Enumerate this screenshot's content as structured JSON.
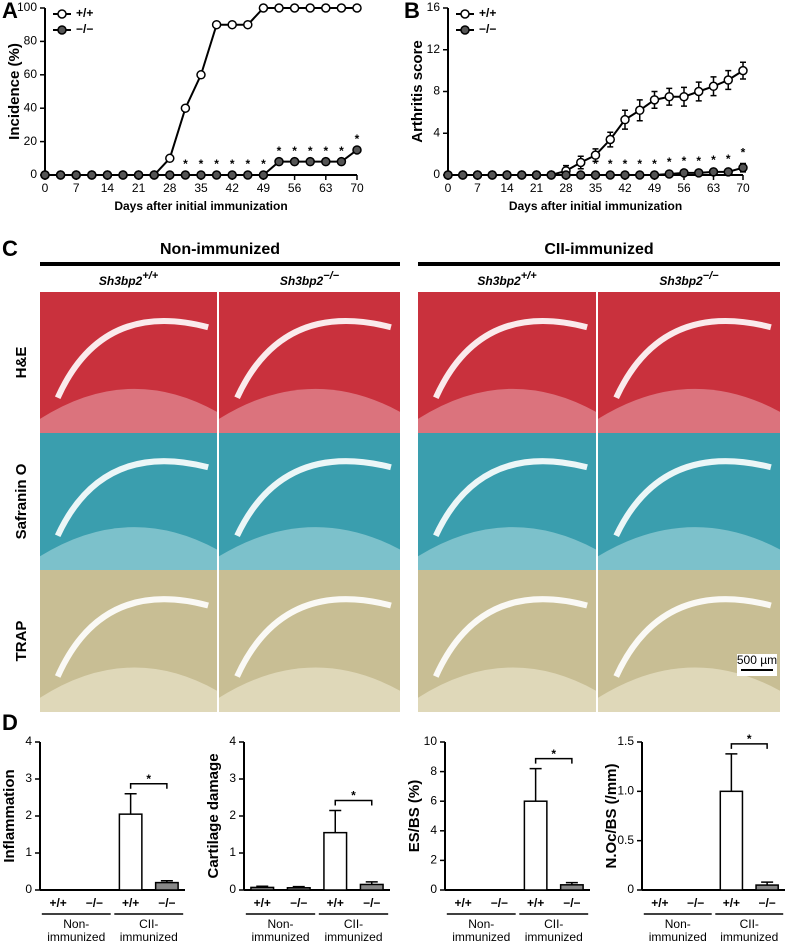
{
  "panel_labels": [
    "A",
    "B",
    "C",
    "D"
  ],
  "chart_data": [
    {
      "type": "line",
      "ylabel": "Incidence (%)",
      "xlabel": "Days after initial immunization",
      "x": [
        0,
        3.5,
        7,
        10.5,
        14,
        17.5,
        21,
        24.5,
        28,
        31.5,
        35,
        38.5,
        42,
        45.5,
        49,
        52.5,
        56,
        59.5,
        63,
        66.5,
        70
      ],
      "xlim": [
        0,
        70
      ],
      "xticks": [
        0,
        7,
        14,
        21,
        28,
        35,
        42,
        49,
        56,
        63,
        70
      ],
      "ylim": [
        0,
        100
      ],
      "yticks": [
        0,
        20,
        40,
        60,
        80,
        100
      ],
      "legend": "upper left",
      "series": [
        {
          "name": "+/+",
          "color": "#ffffff",
          "values": [
            0,
            0,
            0,
            0,
            0,
            0,
            0,
            0,
            10,
            40,
            60,
            90,
            90,
            90,
            100,
            100,
            100,
            100,
            100,
            100,
            100
          ]
        },
        {
          "name": "−/−",
          "color": "#555555",
          "values": [
            0,
            0,
            0,
            0,
            0,
            0,
            0,
            0,
            0,
            0,
            0,
            0,
            0,
            0,
            0,
            8,
            8,
            8,
            8,
            8,
            15
          ]
        }
      ],
      "annotations": [
        {
          "text": "*",
          "x": 31.5
        },
        {
          "text": "*",
          "x": 35
        },
        {
          "text": "*",
          "x": 38.5
        },
        {
          "text": "*",
          "x": 42
        },
        {
          "text": "*",
          "x": 45.5
        },
        {
          "text": "*",
          "x": 49
        },
        {
          "text": "*",
          "x": 52.5
        },
        {
          "text": "*",
          "x": 56
        },
        {
          "text": "*",
          "x": 59.5
        },
        {
          "text": "*",
          "x": 63
        },
        {
          "text": "*",
          "x": 66.5
        },
        {
          "text": "*",
          "x": 70
        }
      ]
    },
    {
      "type": "line",
      "ylabel": "Arthritis score",
      "xlabel": "Days after initial immunization",
      "x": [
        0,
        3.5,
        7,
        10.5,
        14,
        17.5,
        21,
        24.5,
        28,
        31.5,
        35,
        38.5,
        42,
        45.5,
        49,
        52.5,
        56,
        59.5,
        63,
        66.5,
        70
      ],
      "xlim": [
        0,
        70
      ],
      "xticks": [
        0,
        7,
        14,
        21,
        28,
        35,
        42,
        49,
        56,
        63,
        70
      ],
      "ylim": [
        0,
        16
      ],
      "yticks": [
        0,
        4,
        8,
        12,
        16
      ],
      "legend": "upper left",
      "series": [
        {
          "name": "+/+",
          "color": "#ffffff",
          "values": [
            0,
            0,
            0,
            0,
            0,
            0,
            0,
            0,
            0.4,
            1.2,
            1.9,
            3.4,
            5.3,
            6.2,
            7.2,
            7.5,
            7.5,
            8.0,
            8.5,
            9.1,
            10.0
          ],
          "errors": [
            0,
            0,
            0,
            0,
            0,
            0,
            0,
            0,
            0.5,
            0.6,
            0.6,
            0.7,
            0.9,
            1.0,
            0.8,
            0.8,
            0.9,
            0.9,
            0.9,
            0.9,
            0.8
          ]
        },
        {
          "name": "−/−",
          "color": "#555555",
          "values": [
            0,
            0,
            0,
            0,
            0,
            0,
            0,
            0,
            0,
            0,
            0,
            0,
            0,
            0,
            0,
            0.1,
            0.2,
            0.2,
            0.3,
            0.3,
            0.7
          ],
          "errors": [
            0,
            0,
            0,
            0,
            0,
            0,
            0,
            0,
            0,
            0,
            0,
            0,
            0,
            0,
            0,
            0.1,
            0.1,
            0.1,
            0.1,
            0.2,
            0.4
          ]
        }
      ],
      "annotations": [
        {
          "text": "*",
          "x": 35
        },
        {
          "text": "*",
          "x": 38.5
        },
        {
          "text": "*",
          "x": 42
        },
        {
          "text": "*",
          "x": 45.5
        },
        {
          "text": "*",
          "x": 49
        },
        {
          "text": "*",
          "x": 52.5
        },
        {
          "text": "*",
          "x": 56
        },
        {
          "text": "*",
          "x": 59.5
        },
        {
          "text": "*",
          "x": 63
        },
        {
          "text": "*",
          "x": 66.5
        },
        {
          "text": "*",
          "x": 70
        }
      ]
    },
    {
      "type": "bar",
      "ylabel": "Inflammation",
      "categories": [
        "+/+",
        "−/−",
        "+/+",
        "−/−"
      ],
      "groups": [
        [
          "Non-",
          "immunized"
        ],
        [
          "CII-",
          "immunized"
        ]
      ],
      "colors": [
        "#ffffff",
        "#888888",
        "#ffffff",
        "#888888"
      ],
      "values": [
        0,
        0,
        2.05,
        0.2
      ],
      "errors": [
        0,
        0,
        0.55,
        0.05
      ],
      "ylim": [
        0,
        4
      ],
      "yticks": [
        0,
        1,
        2,
        3,
        4
      ],
      "significance": "*"
    },
    {
      "type": "bar",
      "ylabel": "Cartilage damage",
      "categories": [
        "+/+",
        "−/−",
        "+/+",
        "−/−"
      ],
      "groups": [
        [
          "Non-",
          "immunized"
        ],
        [
          "CII-",
          "immunized"
        ]
      ],
      "colors": [
        "#888888",
        "#888888",
        "#ffffff",
        "#888888"
      ],
      "values": [
        0.07,
        0.06,
        1.55,
        0.15
      ],
      "errors": [
        0.03,
        0.03,
        0.6,
        0.07
      ],
      "ylim": [
        0,
        4
      ],
      "yticks": [
        0,
        1,
        2,
        3,
        4
      ],
      "significance": "*"
    },
    {
      "type": "bar",
      "ylabel": "ES/BS (%)",
      "categories": [
        "+/+",
        "−/−",
        "+/+",
        "−/−"
      ],
      "groups": [
        [
          "Non-",
          "immunized"
        ],
        [
          "CII-",
          "immunized"
        ]
      ],
      "colors": [
        "#ffffff",
        "#888888",
        "#ffffff",
        "#888888"
      ],
      "values": [
        0,
        0,
        6.0,
        0.35
      ],
      "errors": [
        0,
        0,
        2.2,
        0.15
      ],
      "ylim": [
        0,
        10
      ],
      "yticks": [
        0,
        2,
        4,
        6,
        8,
        10
      ],
      "significance": "*"
    },
    {
      "type": "bar",
      "ylabel": "N.Oc/BS (/mm)",
      "categories": [
        "+/+",
        "−/−",
        "+/+",
        "−/−"
      ],
      "groups": [
        [
          "Non-",
          "immunized"
        ],
        [
          "CII-",
          "immunized"
        ]
      ],
      "colors": [
        "#ffffff",
        "#888888",
        "#ffffff",
        "#888888"
      ],
      "values": [
        0,
        0,
        1.0,
        0.05
      ],
      "errors": [
        0,
        0,
        0.38,
        0.03
      ],
      "ylim": [
        0,
        1.5
      ],
      "yticks": [
        0,
        0.5,
        {
          "value": 1,
          "label": "1.0"
        },
        1.5
      ],
      "significance": "*"
    }
  ],
  "histology": {
    "groups": [
      "Non-immunized",
      "CII-immunized"
    ],
    "columns": [
      {
        "gene": "Sh3bp2",
        "sup": "+/+"
      },
      {
        "gene": "Sh3bp2",
        "sup": "−/−"
      },
      {
        "gene": "Sh3bp2",
        "sup": "+/+"
      },
      {
        "gene": "Sh3bp2",
        "sup": "−/−"
      }
    ],
    "rows": [
      "H&E",
      "Safranin O",
      "TRAP"
    ],
    "scale_bar": "500 µm"
  }
}
